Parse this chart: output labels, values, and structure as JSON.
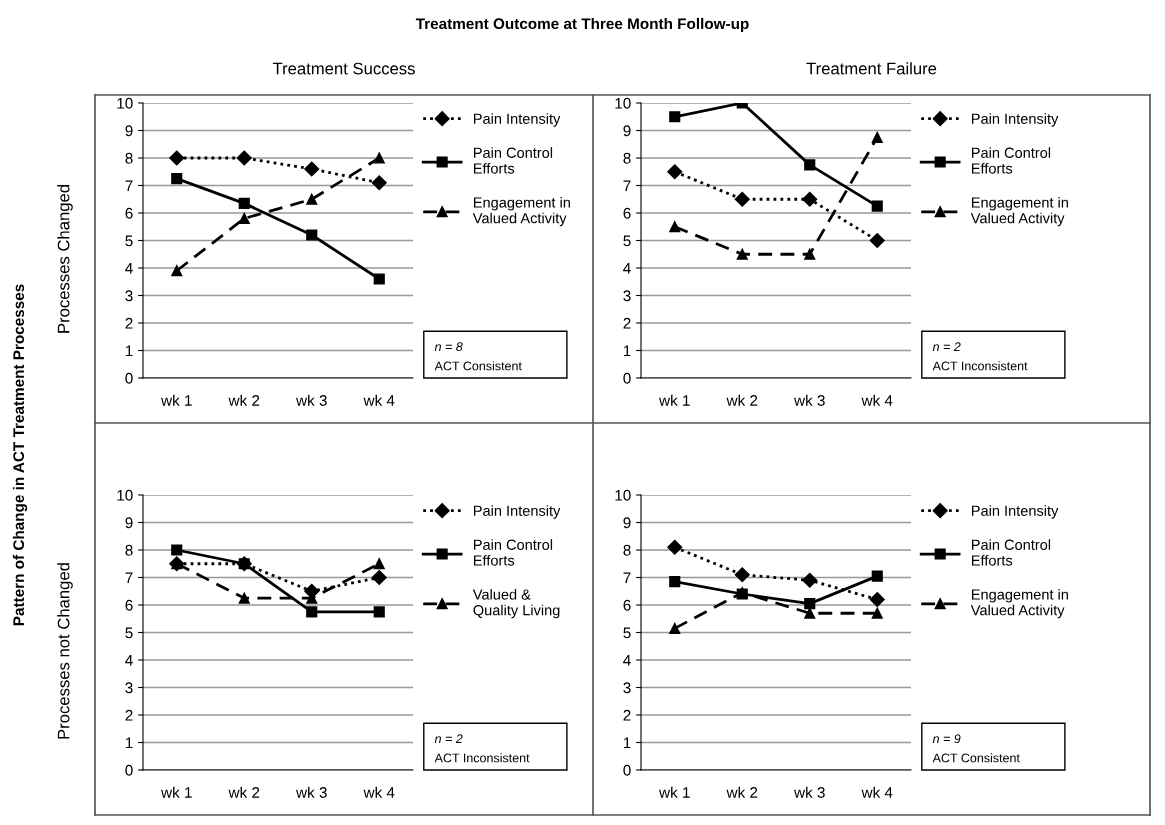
{
  "chart_data": [
    {
      "type": "line",
      "title": "Treatment Outcome at Three Month Follow-up",
      "subtitle": "Treatment Success",
      "ylabel": "Processes Changed",
      "categories": [
        "wk 1",
        "wk 2",
        "wk 3",
        "wk 4"
      ],
      "ylim": [
        0,
        10
      ],
      "yticks": [
        0,
        1,
        2,
        3,
        4,
        5,
        6,
        7,
        8,
        9,
        10
      ],
      "grid": "y",
      "legend": "right",
      "annotations": [
        "Pattern of Change in ACT Treatment Processes",
        "n = 8",
        "ACT Consistent"
      ],
      "series": [
        {
          "name": "Pain Intensity",
          "color": "#000000",
          "marker": "diamond",
          "line_style": "dotted",
          "values": [
            8,
            8,
            7.6,
            7.1
          ]
        },
        {
          "name": "Pain Control\nEfforts",
          "color": "#000000",
          "marker": "square",
          "line_style": "solid",
          "values": [
            7.25,
            6.35,
            5.2,
            3.6
          ]
        },
        {
          "name": "Engagement in\nValued Activity",
          "color": "#000000",
          "marker": "triangle",
          "line_style": "dashed",
          "values": [
            3.9,
            5.8,
            6.5,
            8
          ]
        }
      ]
    },
    {
      "type": "line",
      "subtitle": "Treatment Failure",
      "categories": [
        "wk 1",
        "wk 2",
        "wk 3",
        "wk 4"
      ],
      "ylim": [
        0,
        10
      ],
      "yticks": [
        0,
        1,
        2,
        3,
        4,
        5,
        6,
        7,
        8,
        9,
        10
      ],
      "grid": "y",
      "legend": "right",
      "annotations": [
        "n = 2",
        "ACT Inconsistent"
      ],
      "series": [
        {
          "name": "Pain Intensity",
          "color": "#000000",
          "marker": "diamond",
          "line_style": "dotted",
          "values": [
            7.5,
            6.5,
            6.5,
            5
          ]
        },
        {
          "name": "Pain Control\nEfforts",
          "color": "#000000",
          "marker": "square",
          "line_style": "solid",
          "values": [
            9.5,
            10,
            7.75,
            6.25
          ]
        },
        {
          "name": "Engagement in\nValued Activity",
          "color": "#000000",
          "marker": "triangle",
          "line_style": "dashed",
          "values": [
            5.5,
            4.5,
            4.5,
            8.75
          ]
        }
      ]
    },
    {
      "type": "line",
      "ylabel": "Processes not Changed",
      "categories": [
        "wk 1",
        "wk 2",
        "wk 3",
        "wk 4"
      ],
      "ylim": [
        0,
        10
      ],
      "yticks": [
        0,
        1,
        2,
        3,
        4,
        5,
        6,
        7,
        8,
        9,
        10
      ],
      "grid": "y",
      "legend": "right",
      "annotations": [
        "n = 2",
        "ACT Inconsistent"
      ],
      "series": [
        {
          "name": "Pain Intensity",
          "color": "#000000",
          "marker": "diamond",
          "line_style": "dotted",
          "values": [
            7.5,
            7.5,
            6.5,
            7
          ]
        },
        {
          "name": "Pain Control\nEfforts",
          "color": "#000000",
          "marker": "square",
          "line_style": "solid",
          "values": [
            8,
            7.5,
            5.75,
            5.75
          ]
        },
        {
          "name": "Valued &\nQuality Living",
          "color": "#000000",
          "marker": "triangle",
          "line_style": "dashed",
          "values": [
            7.5,
            6.25,
            6.25,
            7.5
          ]
        }
      ]
    },
    {
      "type": "line",
      "categories": [
        "wk 1",
        "wk 2",
        "wk 3",
        "wk 4"
      ],
      "ylim": [
        0,
        10
      ],
      "yticks": [
        0,
        1,
        2,
        3,
        4,
        5,
        6,
        7,
        8,
        9,
        10
      ],
      "grid": "y",
      "legend": "right",
      "annotations": [
        "n = 9",
        "ACT Consistent"
      ],
      "series": [
        {
          "name": "Pain Intensity",
          "color": "#000000",
          "marker": "diamond",
          "line_style": "dotted",
          "values": [
            8.1,
            7.1,
            6.9,
            6.2
          ]
        },
        {
          "name": "Pain Control\nEfforts",
          "color": "#000000",
          "marker": "square",
          "line_style": "solid",
          "values": [
            6.85,
            6.4,
            6.05,
            7.05
          ]
        },
        {
          "name": "Engagement in\nValued Activity",
          "color": "#000000",
          "marker": "triangle",
          "line_style": "dashed",
          "values": [
            5.15,
            6.45,
            5.7,
            5.7
          ]
        }
      ]
    }
  ]
}
